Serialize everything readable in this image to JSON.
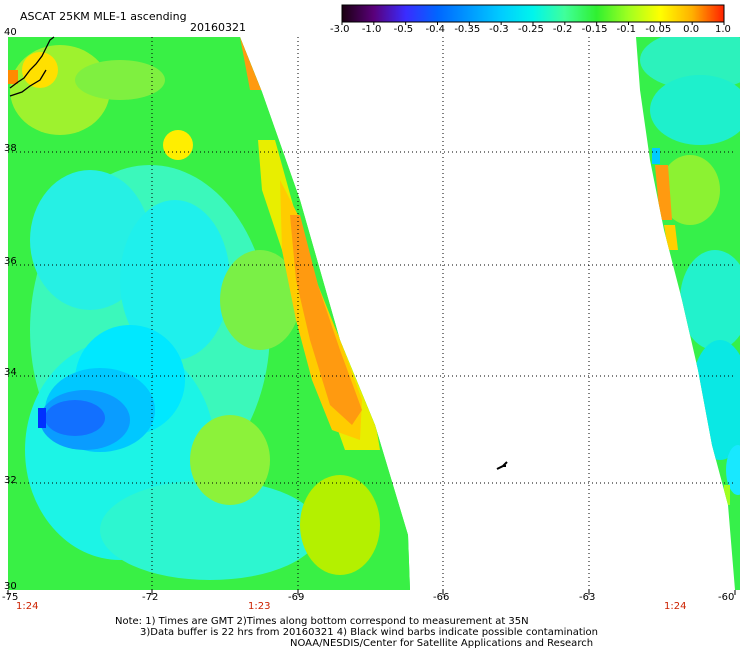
{
  "header": {
    "title": "ASCAT 25KM MLE-1 ascending",
    "date": "20160321"
  },
  "colorbar": {
    "labels": [
      "-3.0",
      "-1.0",
      "-0.5",
      "-0.4",
      "-0.35",
      "-0.3",
      "-0.25",
      "-0.2",
      "-0.15",
      "-0.1",
      "-0.05",
      "0.0",
      "1.0"
    ],
    "colors": [
      "#1a0010",
      "#5a007a",
      "#3a2cff",
      "#0066ff",
      "#0099ff",
      "#00ccff",
      "#00f5ec",
      "#40ff9a",
      "#30f030",
      "#a0ff20",
      "#ffff00",
      "#ffb000",
      "#ff2000"
    ]
  },
  "axes": {
    "lon_labels": [
      "-75",
      "-72",
      "-69",
      "-66",
      "-63",
      "-60"
    ],
    "lat_labels": [
      "40",
      "38",
      "36",
      "34",
      "32",
      "30"
    ]
  },
  "times": [
    "1:24",
    "1:23",
    "1:24"
  ],
  "notes": {
    "line1": "Note: 1) Times are GMT 2)Times along bottom correspond to measurement at 35N",
    "line2": "3)Data buffer is 22 hrs from 20160321 4) Black wind barbs indicate possible contamination",
    "line3": "NOAA/NESDIS/Center for Satellite Applications and Research"
  }
}
